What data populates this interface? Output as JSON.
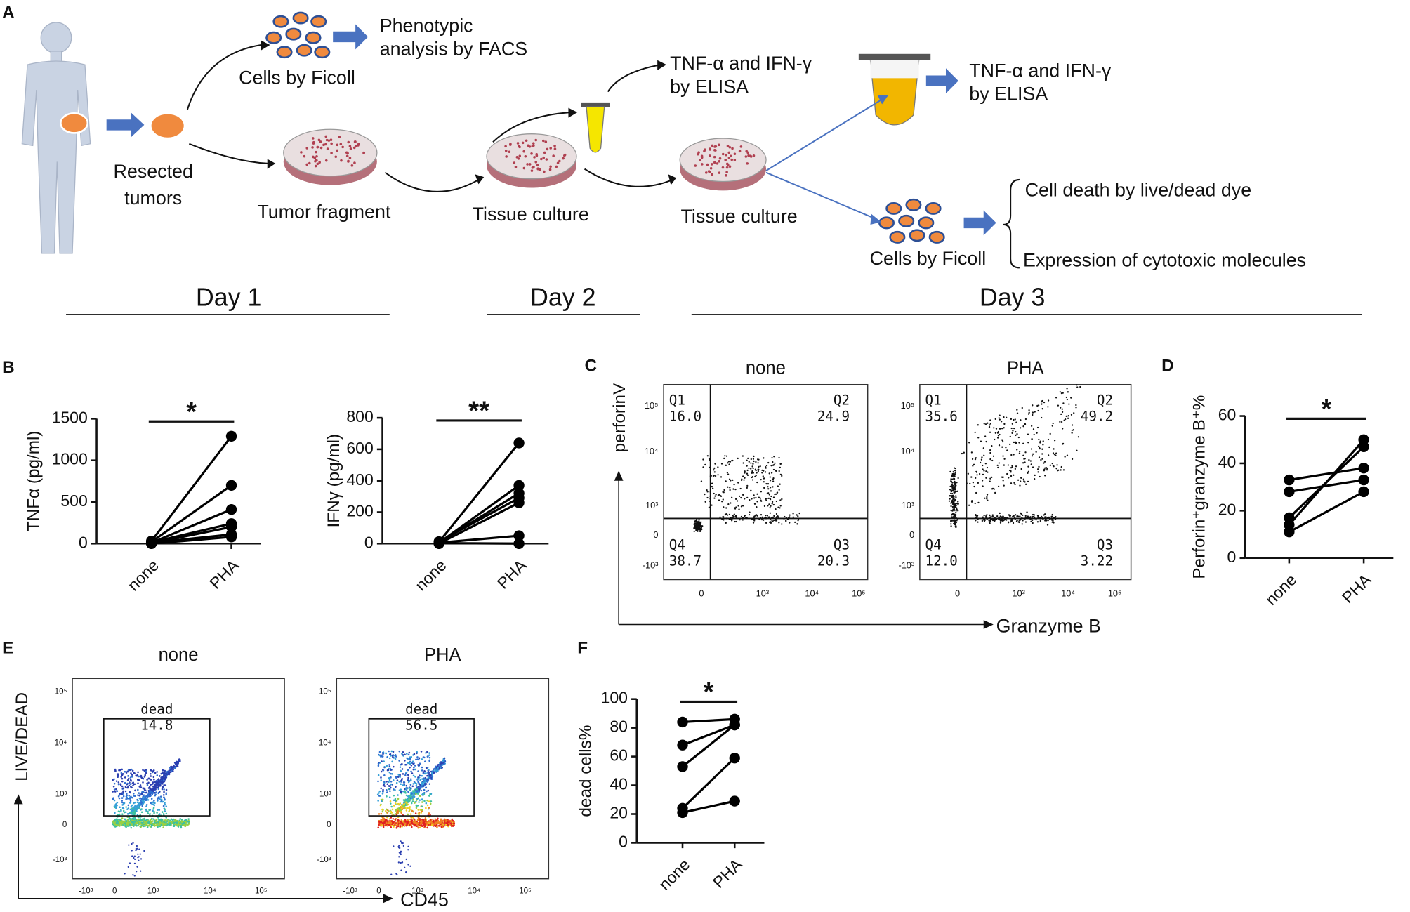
{
  "panel_labels": [
    "A",
    "B",
    "C",
    "D",
    "E",
    "F"
  ],
  "diagram": {
    "labels": [
      "Phenotypic",
      "analysis by FACS",
      "Cells by Ficoll",
      "Resected",
      "tumors",
      "Tumor fragment",
      "Tissue culture",
      "TNF-α and IFN-γ",
      "by ELISA",
      "Tissue culture",
      "TNF-α and IFN-γ",
      "by ELISA",
      "Cells by Ficoll",
      "Cell death by live/dead dye",
      "Expression of cytotoxic molecules"
    ],
    "days": [
      "Day 1",
      "Day 2",
      "Day 3"
    ]
  },
  "chart_data": [
    {
      "type": "line",
      "y_label": "TNFα (pg/ml)",
      "annotation": "*",
      "categories": [
        "none",
        "PHA"
      ],
      "color": "#000000",
      "ylim": [
        0,
        1500
      ],
      "yticks": [
        0,
        500,
        1000,
        1500
      ],
      "series": [
        {
          "values": [
            30,
            1290
          ]
        },
        {
          "values": [
            20,
            700
          ]
        },
        {
          "values": [
            10,
            410
          ]
        },
        {
          "values": [
            15,
            240
          ]
        },
        {
          "values": [
            5,
            200
          ]
        },
        {
          "values": [
            10,
            110
          ]
        },
        {
          "values": [
            0,
            80
          ]
        }
      ]
    },
    {
      "type": "line",
      "y_label": "IFNγ (pg/ml)",
      "annotation": "**",
      "categories": [
        "none",
        "PHA"
      ],
      "color": "#000000",
      "ylim": [
        0,
        800
      ],
      "yticks": [
        0,
        200,
        400,
        600,
        800
      ],
      "series": [
        {
          "values": [
            10,
            640
          ]
        },
        {
          "values": [
            5,
            370
          ]
        },
        {
          "values": [
            8,
            320
          ]
        },
        {
          "values": [
            12,
            290
          ]
        },
        {
          "values": [
            0,
            260
          ]
        },
        {
          "values": [
            6,
            50
          ]
        },
        {
          "values": [
            3,
            0
          ]
        }
      ]
    },
    {
      "type": "line",
      "y_label": "Perforin⁺granzyme B⁺%",
      "annotation": "*",
      "categories": [
        "none",
        "PHA"
      ],
      "color": "#000000",
      "ylim": [
        0,
        60
      ],
      "yticks": [
        0,
        20,
        40,
        60
      ],
      "series": [
        {
          "values": [
            33,
            38
          ]
        },
        {
          "values": [
            28,
            33
          ]
        },
        {
          "values": [
            17,
            47
          ]
        },
        {
          "values": [
            14,
            50
          ]
        },
        {
          "values": [
            11,
            28
          ]
        }
      ]
    },
    {
      "type": "line",
      "y_label": "dead cells%",
      "annotation": "*",
      "categories": [
        "none",
        "PHA"
      ],
      "color": "#000000",
      "ylim": [
        0,
        100
      ],
      "yticks": [
        0,
        20,
        40,
        60,
        80,
        100
      ],
      "series": [
        {
          "values": [
            84,
            86
          ]
        },
        {
          "values": [
            68,
            82
          ]
        },
        {
          "values": [
            53,
            82
          ]
        },
        {
          "values": [
            24,
            59
          ]
        },
        {
          "values": [
            21,
            29
          ]
        }
      ]
    }
  ],
  "flow_c": {
    "conditions": [
      "none",
      "PHA"
    ],
    "y_label": "perforinV",
    "x_label": "Granzyme B",
    "quadrant_names": [
      "Q1",
      "Q2",
      "Q4",
      "Q3"
    ],
    "quadrants": [
      [
        "16.0",
        "24.9",
        "38.7",
        "20.3"
      ],
      [
        "35.6",
        "49.2",
        "12.0",
        "3.22"
      ]
    ],
    "y_ticks": [
      "10⁵",
      "10⁴",
      "10³",
      "0",
      "-10³"
    ],
    "x_ticks": [
      "0",
      "10³",
      "10⁴",
      "10⁵"
    ]
  },
  "flow_e": {
    "conditions": [
      "none",
      "PHA"
    ],
    "y_label": "LIVE/DEAD",
    "x_label": "CD45",
    "gate": "dead",
    "gate_values": [
      "14.8",
      "56.5"
    ],
    "y_ticks": [
      "10⁵",
      "10⁴",
      "10³",
      "0",
      "-10³"
    ],
    "x_ticks": [
      "-10³",
      "0",
      "10³",
      "10⁴",
      "10⁵"
    ]
  }
}
